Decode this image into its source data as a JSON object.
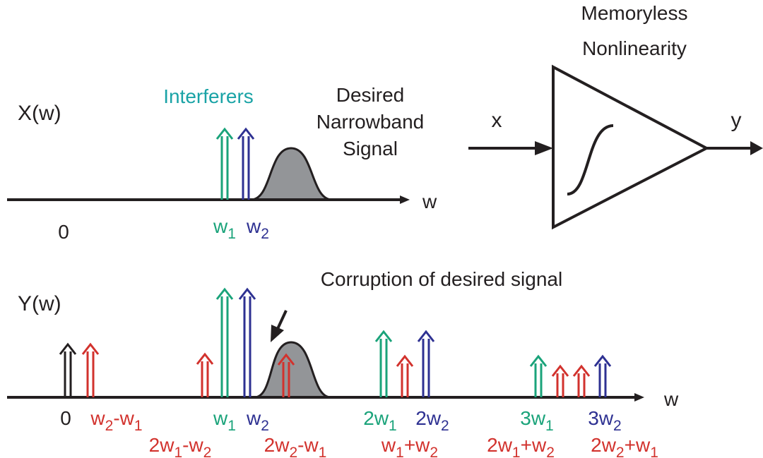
{
  "top": {
    "title": "X(w)",
    "interferers": "Interferers",
    "desired": [
      "Desired",
      "Narrowband",
      "Signal"
    ],
    "axis": "w",
    "origin": "0",
    "labels": [
      [
        "w",
        "1"
      ],
      [
        "w",
        "2"
      ]
    ]
  },
  "amplifier": {
    "title": [
      "Memoryless",
      "Nonlinearity"
    ],
    "input": "x",
    "output": "y"
  },
  "bottom": {
    "title": "Y(w)",
    "axis": "w",
    "annotation": "Corruption of desired signal",
    "labels_row1": [
      [
        "0"
      ],
      [
        "w",
        "2",
        "-w",
        "1"
      ],
      [
        "w",
        "1"
      ],
      [
        "w",
        "2"
      ],
      [
        "2w",
        "1"
      ],
      [
        "2w",
        "2"
      ],
      [
        "3w",
        "1"
      ],
      [
        "3w",
        "2"
      ]
    ],
    "labels_row2": [
      [
        "2w",
        "1",
        "-w",
        "2"
      ],
      [
        "2w",
        "2",
        "-w",
        "1"
      ],
      [
        "w",
        "1",
        "+w",
        "2"
      ],
      [
        "2w",
        "1",
        "+w",
        "2"
      ],
      [
        "2w",
        "2",
        "+w",
        "1"
      ]
    ]
  }
}
